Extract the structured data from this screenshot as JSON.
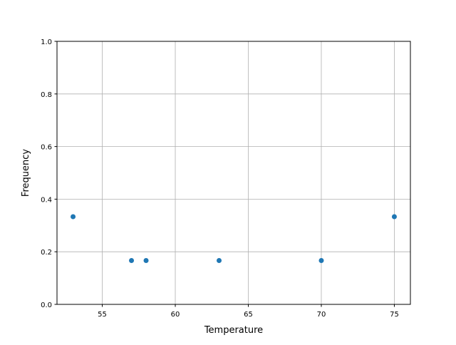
{
  "chart_data": {
    "type": "scatter",
    "title": "",
    "xlabel": "Temperature",
    "ylabel": "Frequency",
    "xlim": [
      51.9,
      76.1
    ],
    "ylim": [
      0,
      1
    ],
    "xticks": [
      55,
      60,
      65,
      70,
      75
    ],
    "xtick_labels": [
      "55",
      "60",
      "65",
      "70",
      "75"
    ],
    "yticks": [
      0,
      0.2,
      0.4,
      0.6,
      0.8,
      1.0
    ],
    "ytick_labels": [
      "0.0",
      "0.2",
      "0.4",
      "0.6",
      "0.8",
      "1.0"
    ],
    "grid": true,
    "color": "#1f77b4",
    "points": [
      {
        "x": 53,
        "y": 0.3333
      },
      {
        "x": 57,
        "y": 0.1667
      },
      {
        "x": 58,
        "y": 0.1667
      },
      {
        "x": 63,
        "y": 0.1667
      },
      {
        "x": 70,
        "y": 0.1667
      },
      {
        "x": 75,
        "y": 0.3333
      }
    ]
  }
}
